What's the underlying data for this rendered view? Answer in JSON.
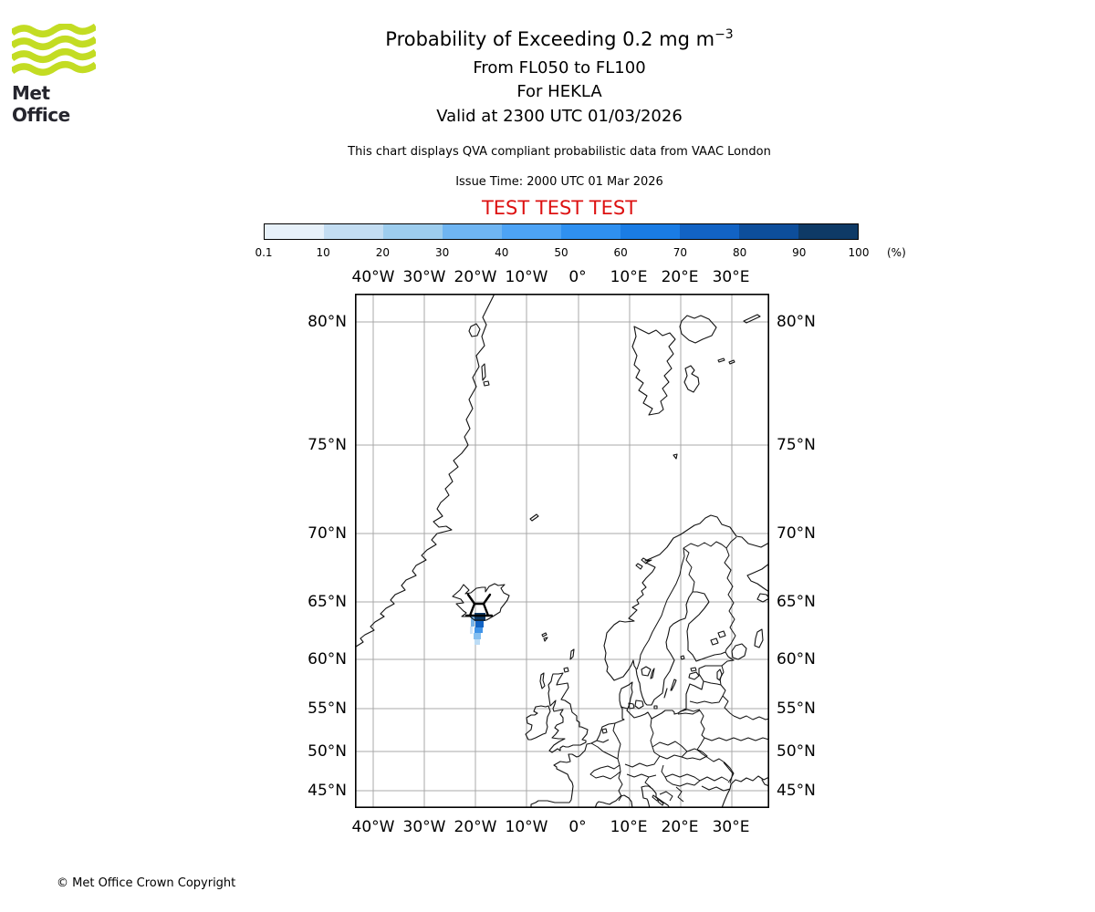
{
  "header": {
    "logo_text": "Met Office",
    "logo_green": "#c3dc23"
  },
  "titles": {
    "main": "Probability of Exceeding 0.2 mg m",
    "main_exponent": "−3",
    "sub1": "From FL050 to FL100",
    "sub2": "For HEKLA",
    "sub3": "Valid at 2300 UTC 01/03/2026",
    "note": "This chart displays QVA compliant probabilistic data from VAAC London",
    "issue": "Issue Time: 2000 UTC 01 Mar 2026",
    "test": "TEST TEST TEST",
    "test_color": "#dd1111"
  },
  "colorbar": {
    "tick_labels": [
      "0.1",
      "10",
      "20",
      "30",
      "40",
      "50",
      "60",
      "70",
      "80",
      "90",
      "100"
    ],
    "unit": "(%)",
    "colors": [
      "#e7f1fa",
      "#c3ddf2",
      "#9dcdee",
      "#6fb5f2",
      "#4da3f5",
      "#2f90f0",
      "#1a7ce4",
      "#1263c4",
      "#0d4e9b",
      "#0e3a66"
    ]
  },
  "map": {
    "lon_labels": [
      "40°W",
      "30°W",
      "20°W",
      "10°W",
      "0°",
      "10°E",
      "20°E",
      "30°E"
    ],
    "lat_labels": [
      "80°N",
      "75°N",
      "70°N",
      "65°N",
      "60°N",
      "55°N",
      "50°N",
      "45°N"
    ],
    "grid_color": "#a8a8a8",
    "coast_color": "#111111"
  },
  "volcano": {
    "name": "HEKLA",
    "lat": 63.98,
    "lon": -19.7,
    "marker": "volcano-symbol"
  },
  "plume": {
    "segments": [
      {
        "range": "90-100%",
        "color": "#0e3a66"
      },
      {
        "range": "70-80%",
        "color": "#1263c4"
      },
      {
        "range": "50-60%",
        "color": "#3f93e8"
      },
      {
        "range": "30-40%",
        "color": "#85bff0"
      },
      {
        "range": "10-20%",
        "color": "#bcdcf5"
      },
      {
        "range": "20-30%",
        "color": "#79b4e8"
      },
      {
        "range": "0.1-10%",
        "color": "#cfe3f6"
      }
    ]
  },
  "footer": {
    "copyright": "© Met Office Crown Copyright"
  },
  "chart_data": {
    "type": "heatmap",
    "title": "Probability of Exceeding 0.2 mg m-3",
    "subtitle": [
      "From FL050 to FL100",
      "For HEKLA",
      "Valid at 2300 UTC 01/03/2026"
    ],
    "annotations": [
      "This chart displays QVA compliant probabilistic data from VAAC London",
      "Issue Time: 2000 UTC 01 Mar 2026",
      "TEST TEST TEST",
      "© Met Office Crown Copyright"
    ],
    "projection": "mercator",
    "lon_range": [
      -43.6,
      37.2
    ],
    "lat_range": [
      42.7,
      80.9
    ],
    "grid": {
      "lon_ticks_deg": [
        -40,
        -30,
        -20,
        -10,
        0,
        10,
        20,
        30
      ],
      "lat_ticks_deg": [
        80,
        75,
        70,
        65,
        60,
        55,
        50,
        45
      ],
      "grid_on": true
    },
    "legend": {
      "label": "(%)",
      "ticks": [
        0.1,
        10,
        20,
        30,
        40,
        50,
        60,
        70,
        80,
        90,
        100
      ],
      "position": "top",
      "colors": [
        "#e7f1fa",
        "#c3ddf2",
        "#9dcdee",
        "#6fb5f2",
        "#4da3f5",
        "#2f90f0",
        "#1a7ce4",
        "#1263c4",
        "#0d4e9b",
        "#0e3a66"
      ]
    },
    "source_volcano": {
      "name": "HEKLA",
      "lat": 63.98,
      "lon": -19.7
    },
    "plume_cells": [
      {
        "lat": 63.9,
        "lon": -19.8,
        "probability_pct": 95
      },
      {
        "lat": 63.7,
        "lon": -19.8,
        "probability_pct": 75
      },
      {
        "lat": 63.8,
        "lon": -20.2,
        "probability_pct": 25
      },
      {
        "lat": 63.5,
        "lon": -19.9,
        "probability_pct": 55
      },
      {
        "lat": 63.3,
        "lon": -19.9,
        "probability_pct": 35
      },
      {
        "lat": 63.1,
        "lon": -20.0,
        "probability_pct": 15
      },
      {
        "lat": 63.0,
        "lon": -20.1,
        "probability_pct": 5
      }
    ]
  }
}
